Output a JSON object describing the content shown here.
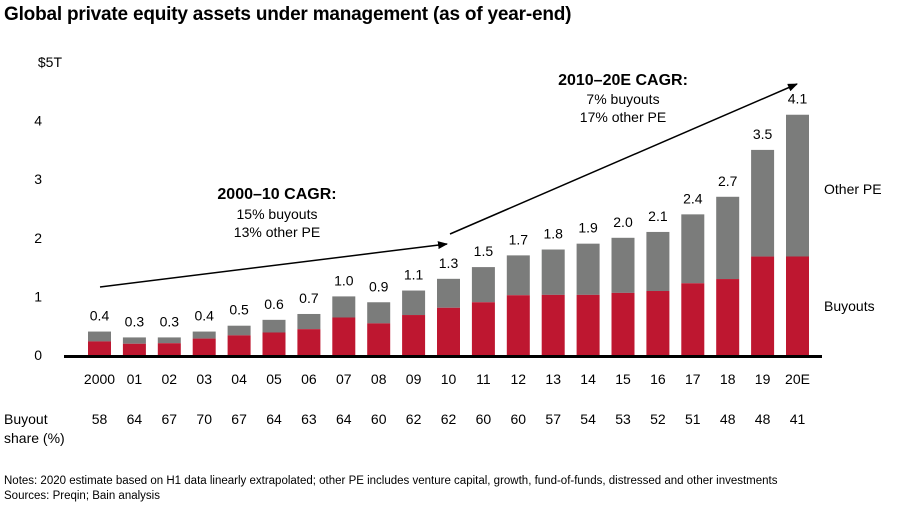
{
  "chart_data": {
    "type": "bar",
    "stacked": true,
    "title": "Global private equity assets under management (as of year-end)",
    "xlabel": "",
    "ylabel": "",
    "y_unit_label": "$5T",
    "ylim": [
      0,
      5
    ],
    "yticks": [
      "0",
      "1",
      "2",
      "3",
      "4",
      "$5T"
    ],
    "grid": false,
    "categories": [
      "2000",
      "01",
      "02",
      "03",
      "04",
      "05",
      "06",
      "07",
      "08",
      "09",
      "10",
      "11",
      "12",
      "13",
      "14",
      "15",
      "16",
      "17",
      "18",
      "19",
      "20E"
    ],
    "totals": [
      0.4,
      0.3,
      0.3,
      0.4,
      0.5,
      0.6,
      0.7,
      1.0,
      0.9,
      1.1,
      1.3,
      1.5,
      1.7,
      1.8,
      1.9,
      2.0,
      2.1,
      2.4,
      2.7,
      3.5,
      4.1
    ],
    "total_labels": [
      "0.4",
      "0.3",
      "0.3",
      "0.4",
      "0.5",
      "0.6",
      "0.7",
      "1.0",
      "0.9",
      "1.1",
      "1.3",
      "1.5",
      "1.7",
      "1.8",
      "1.9",
      "2.0",
      "2.1",
      "2.4",
      "2.7",
      "3.5",
      "4.1"
    ],
    "buyout_share_pct": [
      58,
      64,
      67,
      70,
      67,
      64,
      63,
      64,
      60,
      62,
      62,
      60,
      60,
      57,
      54,
      53,
      52,
      51,
      48,
      48,
      41
    ],
    "series": [
      {
        "name": "Buyouts",
        "color": "#BE1730"
      },
      {
        "name": "Other PE",
        "color": "#7B7C7B"
      }
    ],
    "legend": [
      {
        "label": "Other PE",
        "placement": "right, beside top segment"
      },
      {
        "label": "Buyouts",
        "placement": "right, beside bottom segment"
      }
    ],
    "annotations": [
      {
        "heading": "2000–10 CAGR:",
        "lines": [
          "15% buyouts",
          "13% other PE"
        ],
        "arrow_from": "2000",
        "arrow_to": "10"
      },
      {
        "heading": "2010–20E CAGR:",
        "lines": [
          "7% buyouts",
          "17% other PE"
        ],
        "arrow_from": "10",
        "arrow_to": "20E"
      }
    ],
    "share_row_label": [
      "Buyout",
      "share (%)"
    ]
  },
  "footer": {
    "notes": "Notes: 2020 estimate based on H1 data linearly extrapolated; other PE includes venture capital, growth, fund-of-funds, distressed and other investments",
    "sources": "Sources: Preqin; Bain analysis"
  }
}
